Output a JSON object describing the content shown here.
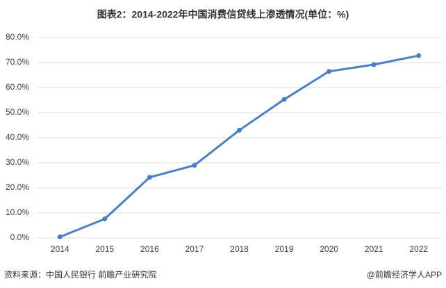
{
  "chart_data": {
    "type": "line",
    "title": "图表2：2014-2022年中国消费信贷线上渗透情况(单位：%)",
    "categories": [
      "2014",
      "2015",
      "2016",
      "2017",
      "2018",
      "2019",
      "2020",
      "2021",
      "2022"
    ],
    "series": [
      {
        "color": "#4a7fc1",
        "values": [
          0.4,
          7.6,
          24.2,
          29.0,
          43.0,
          55.3,
          66.5,
          69.2,
          72.8
        ]
      }
    ],
    "ylim": [
      0,
      80
    ],
    "yticks": [
      {
        "value": 0,
        "label": "0.0%"
      },
      {
        "value": 10,
        "label": "10.0%"
      },
      {
        "value": 20,
        "label": "20.0%"
      },
      {
        "value": 30,
        "label": "30.0%"
      },
      {
        "value": 40,
        "label": "40.0%"
      },
      {
        "value": 50,
        "label": "50.0%"
      },
      {
        "value": 60,
        "label": "60.0%"
      },
      {
        "value": 70,
        "label": "70.0%"
      },
      {
        "value": 80,
        "label": "80.0%"
      }
    ],
    "grid": true,
    "source": "资料来源：中国人民银行 前瞻产业研究院",
    "credit": "@前瞻经济学人APP"
  }
}
